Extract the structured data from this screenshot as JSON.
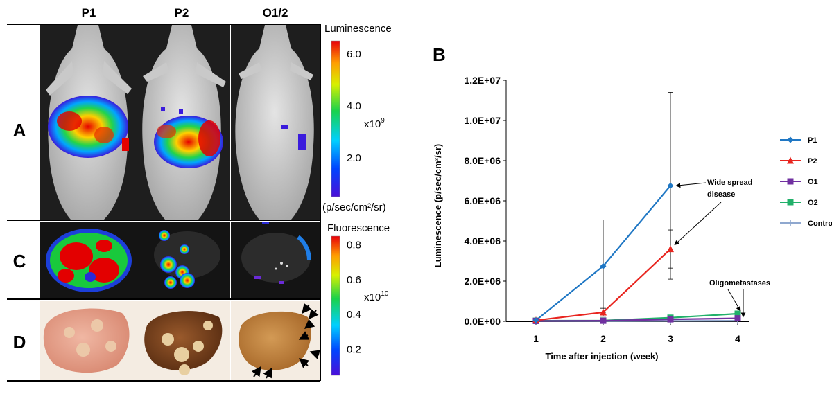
{
  "panel_letters": {
    "a": "A",
    "b": "B",
    "c": "C",
    "d": "D"
  },
  "column_headers": [
    "P1",
    "P2",
    "O1/2"
  ],
  "luminescence_scale": {
    "title": "Luminescence",
    "ticks": [
      "6.0",
      "4.0",
      "2.0"
    ],
    "tick_values": [
      6.0,
      4.0,
      2.0
    ],
    "range": [
      0.5,
      6.5
    ],
    "multiplier_base": "x10",
    "multiplier_exp": "9",
    "units": "(p/sec/cm²/sr)"
  },
  "fluorescence_scale": {
    "title": "Fluorescence",
    "ticks": [
      "0.8",
      "0.6",
      "0.4",
      "0.2"
    ],
    "tick_values": [
      0.8,
      0.6,
      0.4,
      0.2
    ],
    "range": [
      0.05,
      0.85
    ],
    "multiplier_base": "x10",
    "multiplier_exp": "10"
  },
  "colors": {
    "p1": "#1f77c4",
    "p2": "#e8251f",
    "o1": "#7030a0",
    "o2": "#21b06a",
    "control": "#8fa8cf",
    "imaging_bg": "#3a3a3a",
    "liver_photo_bg": "#f4ece2"
  },
  "chart_data": {
    "type": "line",
    "title": "",
    "xlabel": "Time after injection (week)",
    "ylabel": "Luminescence  (p/sec/cm²/sr)",
    "x": [
      1,
      2,
      3,
      4
    ],
    "ylim": [
      0,
      12000000
    ],
    "yticks": [
      0,
      2000000,
      4000000,
      6000000,
      8000000,
      10000000,
      12000000
    ],
    "ytick_labels": [
      "0.0E+00",
      "2.0E+06",
      "4.0E+06",
      "6.0E+06",
      "8.0E+06",
      "1.0E+07",
      "1.2E+07"
    ],
    "xtick_labels": [
      "1",
      "2",
      "3",
      "4"
    ],
    "legend_position": "right",
    "series": [
      {
        "name": "P1",
        "key": "p1",
        "marker": "diamond",
        "values": [
          50000,
          2750000,
          6750000,
          0
        ],
        "present": [
          true,
          true,
          true,
          false
        ],
        "errors": [
          0,
          2300000,
          4650000,
          0
        ]
      },
      {
        "name": "P2",
        "key": "p2",
        "marker": "triangle",
        "values": [
          50000,
          450000,
          3600000,
          0
        ],
        "present": [
          true,
          true,
          true,
          false
        ],
        "errors": [
          0,
          200000,
          950000,
          0
        ]
      },
      {
        "name": "O1",
        "key": "o1",
        "marker": "square",
        "values": [
          20000,
          30000,
          100000,
          150000
        ],
        "present": [
          true,
          true,
          true,
          true
        ],
        "errors": [
          0,
          0,
          0,
          0
        ]
      },
      {
        "name": "O2",
        "key": "o2",
        "marker": "square",
        "values": [
          30000,
          40000,
          180000,
          380000
        ],
        "present": [
          true,
          true,
          true,
          true
        ],
        "errors": [
          0,
          0,
          0,
          0
        ]
      },
      {
        "name": "Control",
        "key": "control",
        "marker": "plus",
        "values": [
          10000,
          10000,
          20000,
          30000
        ],
        "present": [
          true,
          true,
          true,
          true
        ],
        "errors": [
          0,
          0,
          0,
          0
        ]
      }
    ],
    "annotations": [
      {
        "lines": [
          "Wide spread",
          "disease"
        ]
      },
      {
        "lines": [
          "Oligometastases"
        ]
      }
    ]
  }
}
